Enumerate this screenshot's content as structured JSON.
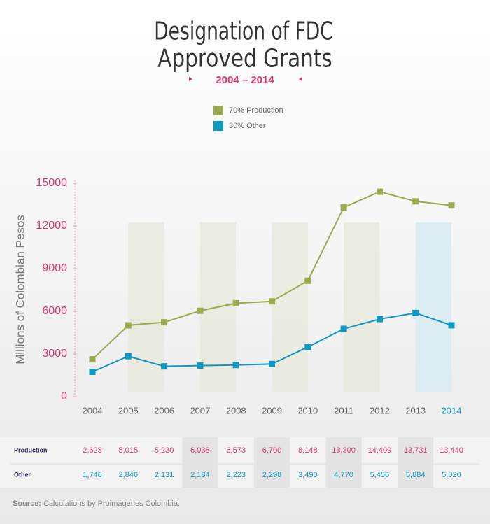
{
  "chart_data": {
    "type": "line",
    "title_lines": [
      "Designation of FDC",
      "Approved Grants"
    ],
    "subtitle": "2004 – 2014",
    "y_label": "Millions of Colombian Pesos",
    "categories": [
      "2004",
      "2005",
      "2006",
      "2007",
      "2008",
      "2009",
      "2010",
      "2011",
      "2012",
      "2013",
      "2014"
    ],
    "series": [
      {
        "name": "70% Production",
        "table_label": "Production",
        "color": "#9aab4f",
        "values": [
          2623,
          5015,
          5230,
          6038,
          6573,
          6700,
          8148,
          13300,
          14409,
          13731,
          13440
        ],
        "value_labels": [
          "2,623",
          "5,015",
          "5,230",
          "6,038",
          "6,573",
          "6,700",
          "8,148",
          "13,300",
          "14,409",
          "13,731",
          "13,440"
        ]
      },
      {
        "name": "30% Other",
        "table_label": "Other",
        "color": "#0e98c1",
        "values": [
          1746,
          2846,
          2131,
          2184,
          2223,
          2298,
          3490,
          4770,
          5456,
          5884,
          5020
        ],
        "value_labels": [
          "1,746",
          "2,846",
          "2,131",
          "2,184",
          "2,223",
          "2,298",
          "3,490",
          "4,770",
          "5,456",
          "5,884",
          "5,020"
        ]
      }
    ],
    "ylim": [
      0,
      15000
    ],
    "yticks": [
      0,
      3000,
      6000,
      9000,
      12000,
      15000
    ],
    "source_label": "Source:",
    "source_text": "Calculations by Proimágenes Colombia."
  }
}
